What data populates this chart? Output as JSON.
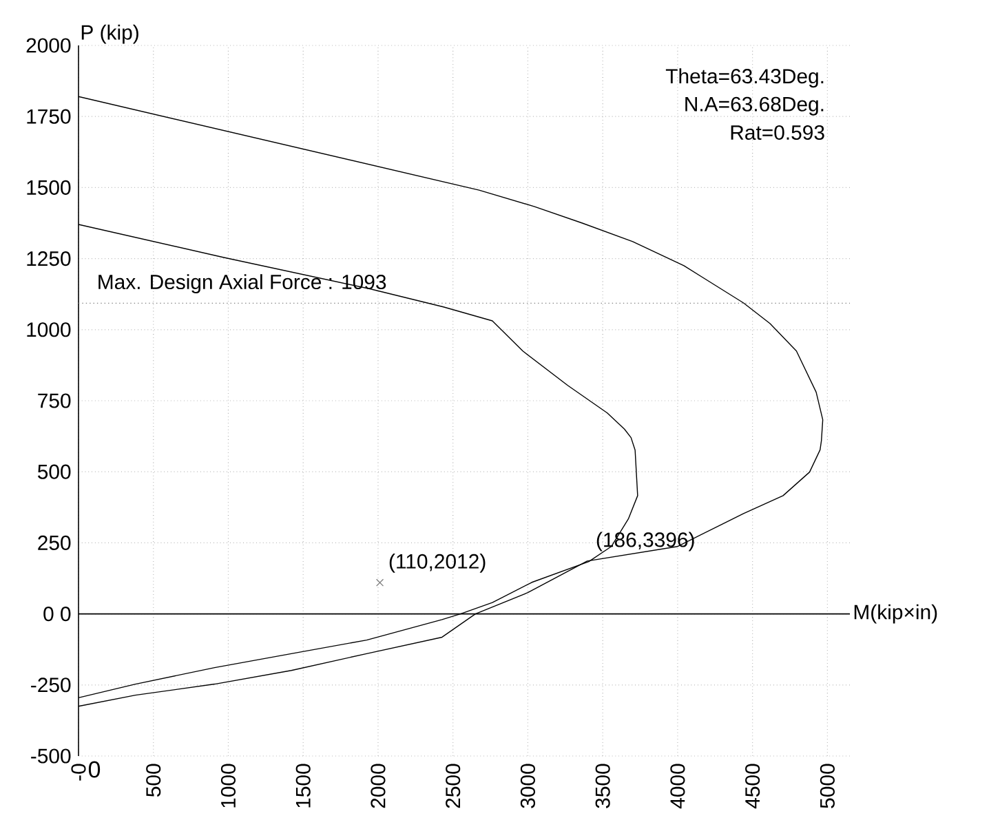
{
  "chart_data": {
    "type": "line",
    "xlabel": "M(kip×in)",
    "ylabel": "P (kip)",
    "xlim": [
      0,
      5150
    ],
    "ylim": [
      -500,
      2000
    ],
    "xticks": [
      {
        "value": 0,
        "label": "-0"
      },
      500,
      1000,
      1500,
      2000,
      2500,
      3000,
      3500,
      4000,
      4500,
      5000
    ],
    "yticks": [
      -500,
      -250,
      {
        "value": 0,
        "label": "0 0"
      },
      250,
      500,
      750,
      1000,
      1250,
      1500,
      1750,
      2000
    ],
    "grid": true,
    "marker": "none",
    "line_style": "solid",
    "series": [
      {
        "color": "#000000",
        "x": [
          0,
          2674,
          3045,
          3363,
          3700,
          4042,
          4440,
          4616,
          4793,
          4925,
          4969,
          4960,
          4951,
          4881,
          4704,
          4440,
          3998,
          3396,
          3000,
          2650,
          2427,
          1924,
          1421,
          909,
          380,
          0
        ],
        "values": [
          1820,
          1491,
          1433,
          1375,
          1310,
          1225,
          1094,
          1022,
          925,
          780,
          683,
          610,
          577,
          499,
          416,
          353,
          237,
          186,
          75,
          0,
          -82,
          -140,
          -199,
          -247,
          -286,
          -325
        ]
      },
      {
        "color": "#000000",
        "x": [
          0,
          971,
          1950,
          2436,
          2763,
          2966,
          3266,
          3530,
          3645,
          3689,
          3716,
          3733,
          3671,
          3557,
          3407,
          3027,
          2763,
          2550,
          2427,
          1924,
          1421,
          909,
          380,
          0
        ],
        "values": [
          1370,
          1254,
          1143,
          1080,
          1031,
          925,
          804,
          707,
          650,
          620,
          576,
          416,
          334,
          237,
          184,
          111,
          40,
          0,
          -20,
          -92,
          -140,
          -189,
          -247,
          -295
        ]
      },
      {
        "type": "scatter",
        "marker": "cross",
        "color": "#808080",
        "x": [
          2012
        ],
        "values": [
          110
        ]
      }
    ],
    "ref_lines": [
      {
        "axis": "y",
        "value": 1093,
        "label": "Max. Design Axial Force :  1093",
        "line_style": "dotted"
      }
    ],
    "annotations": [
      "Theta=63.43Deg.",
      "N.A=63.68Deg.",
      "Rat=0.593",
      "0",
      {
        "text": "(110,2012)",
        "x": 2012,
        "y": 110
      },
      {
        "text": "(186,3396)",
        "x": 3396,
        "y": 186
      }
    ]
  }
}
